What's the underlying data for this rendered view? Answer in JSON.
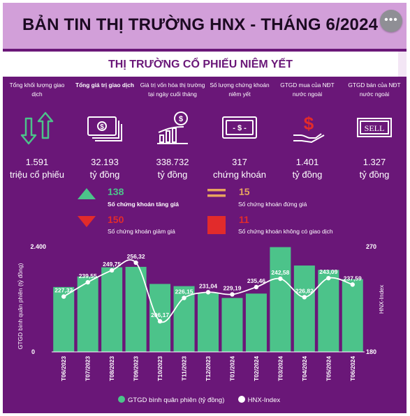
{
  "header": {
    "title": "BẢN TIN THỊ TRƯỜNG HNX - THÁNG 6/2024"
  },
  "section": {
    "title": "THỊ TRƯỜNG CỔ PHIẾU NIÊM YẾT"
  },
  "stats": [
    {
      "label": "Tổng khối lượng giao dịch",
      "value": "1.591",
      "unit": "triệu cổ phiếu",
      "icon": "up-down-arrows-icon"
    },
    {
      "label": "Tổng giá trị giao dịch",
      "value": "32.193",
      "unit": "tỷ đồng",
      "icon": "banknotes-icon"
    },
    {
      "label": "Giá trị vốn hóa thị trường tại ngày cuối tháng",
      "value": "338.732",
      "unit": "tỷ đồng",
      "icon": "growth-chart-coin-icon"
    },
    {
      "label": "Số lượng chứng khoán niêm yết",
      "value": "317",
      "unit": "chứng khoán",
      "icon": "money-bill-icon"
    },
    {
      "label": "GTGD mua của NĐT nước ngoài",
      "value": "1.401",
      "unit": "tỷ đồng",
      "icon": "hand-dollar-icon"
    },
    {
      "label": "GTGD bán của NĐT nước ngoài",
      "value": "1.327",
      "unit": "tỷ đồng",
      "icon": "sell-sign-icon",
      "sign_text": "SELL"
    }
  ],
  "counts": [
    {
      "value": "138",
      "label": "Số chứng khoán tăng giá",
      "color": "#4cc38a",
      "icon": "up-triangle-icon"
    },
    {
      "value": "15",
      "label": "Số chứng khoán đứng giá",
      "color": "#e8a55e",
      "icon": "equal-bars-icon"
    },
    {
      "value": "150",
      "label": "Số chứng khoán giảm giá",
      "color": "#e22b2b",
      "icon": "down-triangle-icon"
    },
    {
      "value": "11",
      "label": "Số chứng khoán không có giao dịch",
      "color": "#e22b2b",
      "icon": "red-square-icon"
    }
  ],
  "chart_data": {
    "type": "bar+line",
    "categories": [
      "T06/2023",
      "T07/2023",
      "T08/2023",
      "T09/2023",
      "T10/2023",
      "T11/2023",
      "T12/2023",
      "T01/2024",
      "T02/2024",
      "T03/2024",
      "T04/2024",
      "T05/2024",
      "T06/2024"
    ],
    "series": [
      {
        "name": "GTGD bình quân phiên (tỷ đồng)",
        "type": "bar",
        "axis": "left",
        "color": "#4cc38a",
        "values": [
          1480,
          1720,
          1930,
          1940,
          1550,
          1500,
          1340,
          1230,
          1330,
          2390,
          1970,
          1870,
          1660
        ]
      },
      {
        "name": "HNX-Index",
        "type": "line",
        "axis": "right",
        "color": "#ffffff",
        "values": [
          227.32,
          239.55,
          249.75,
          256.32,
          206.17,
          226.15,
          231.04,
          229.19,
          235.46,
          242.58,
          226.82,
          243.09,
          237.59
        ],
        "labels": [
          "227,32",
          "239,55",
          "249,75",
          "256,32",
          "206,17",
          "226,15",
          "231,04",
          "229,19",
          "235,46",
          "242,58",
          "226,82",
          "243,09",
          "237,59"
        ]
      }
    ],
    "ylabel_left": "GTGD bình quân phiên (tỷ đồng)",
    "ylabel_right": "HNX-Index",
    "ylim_left": [
      0,
      2400
    ],
    "ylim_right": [
      180,
      270
    ],
    "ytick_labels_left": [
      "0",
      "2.400"
    ],
    "ytick_labels_right": [
      "180",
      "270"
    ],
    "legend": [
      "GTGD bình quân phiên (tỷ đồng)",
      "HNX-Index"
    ],
    "legend_position": "bottom",
    "grid": false
  }
}
